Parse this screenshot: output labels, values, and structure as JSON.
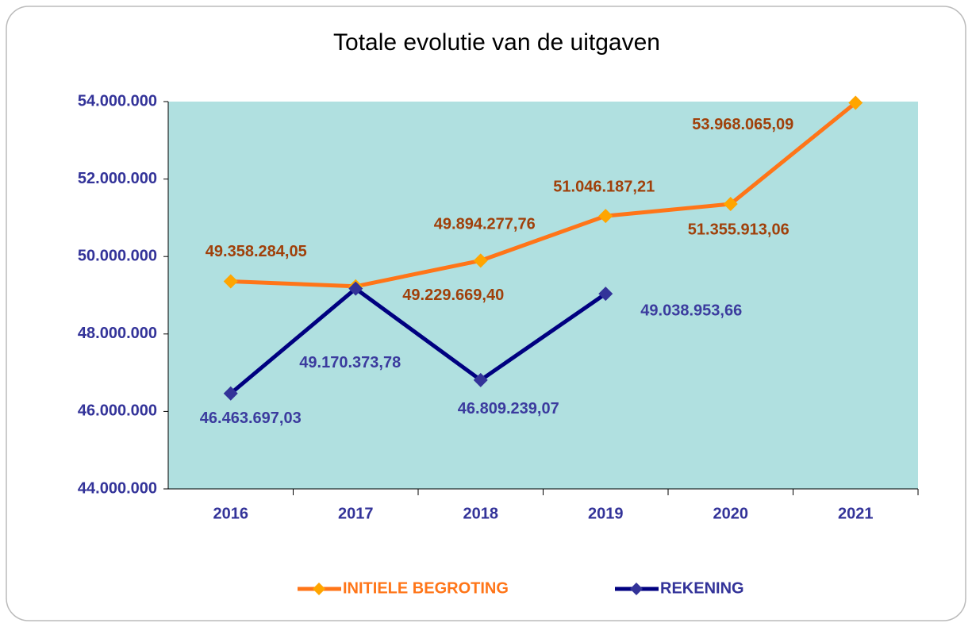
{
  "chart_data": {
    "type": "line",
    "title": "Totale evolutie van de uitgaven",
    "categories": [
      "2016",
      "2017",
      "2018",
      "2019",
      "2020",
      "2021"
    ],
    "series": [
      {
        "name": "INITIELE BEGROTING",
        "color": "#ff7518",
        "marker_color": "#ffa500",
        "label_color": "#a0400a",
        "values": [
          49358284.05,
          49229669.4,
          49894277.76,
          51046187.21,
          51355913.06,
          53968065.09
        ],
        "value_labels": [
          "49.358.284,05",
          "49.229.669,40",
          "49.894.277,76",
          "51.046.187,21",
          "51.355.913,06",
          "53.968.065,09"
        ]
      },
      {
        "name": "REKENING",
        "color": "#000080",
        "marker_color": "#333399",
        "label_color": "#3b3b9e",
        "values": [
          46463697.03,
          49170373.78,
          46809239.07,
          49038953.66,
          null,
          null
        ],
        "value_labels": [
          "46.463.697,03",
          "49.170.373,78",
          "46.809.239,07",
          "49.038.953,66",
          null,
          null
        ]
      }
    ],
    "ylim": [
      44000000,
      54000000
    ],
    "yticks": [
      {
        "value": 44000000,
        "label": "44.000.000"
      },
      {
        "value": 46000000,
        "label": "46.000.000"
      },
      {
        "value": 48000000,
        "label": "48.000.000"
      },
      {
        "value": 50000000,
        "label": "50.000.000"
      },
      {
        "value": 52000000,
        "label": "52.000.000"
      },
      {
        "value": 54000000,
        "label": "54.000.000"
      }
    ],
    "plot_background": "#b0e0e0",
    "legend": "bottom"
  }
}
